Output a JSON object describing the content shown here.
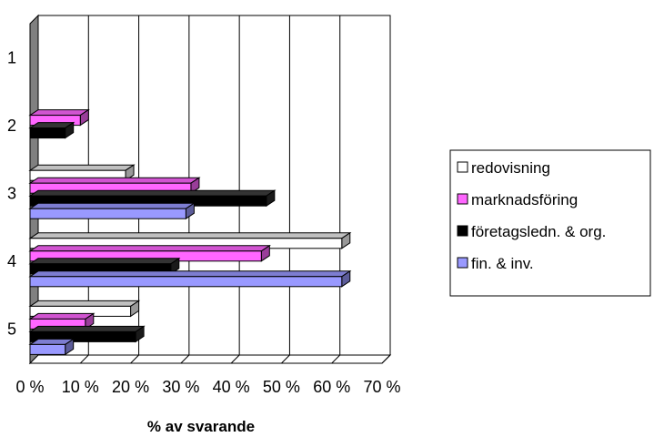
{
  "chart_data": {
    "type": "bar",
    "orientation": "horizontal",
    "style": "3d",
    "categories": [
      "1",
      "2",
      "3",
      "4",
      "5"
    ],
    "x_ticks": [
      "0 %",
      "10 %",
      "20 %",
      "30 %",
      "40 %",
      "50 %",
      "60 %",
      "70 %"
    ],
    "xlabel": "% av svarande",
    "ylabel": "",
    "xlim": [
      0,
      70
    ],
    "grid": "vertical",
    "legend_position": "right",
    "series": [
      {
        "name": "redovisning",
        "color": "#ffffff",
        "values": [
          0,
          0,
          19,
          62,
          20
        ]
      },
      {
        "name": "marknadsföring",
        "color": "#ff66ff",
        "values": [
          0,
          10,
          32,
          46,
          11
        ]
      },
      {
        "name": "företagsledn. & org.",
        "color": "#000000",
        "values": [
          0,
          7,
          47,
          28,
          21
        ]
      },
      {
        "name": "fin. & inv.",
        "color": "#9999ff",
        "values": [
          0,
          0,
          31,
          62,
          7
        ]
      }
    ]
  }
}
